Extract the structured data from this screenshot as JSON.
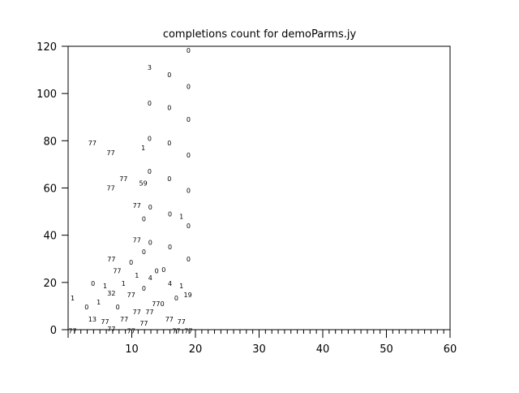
{
  "chart_data": {
    "type": "scatter",
    "title": "completions count for demoParms.jy",
    "xlabel": "",
    "ylabel": "",
    "xlim": [
      0,
      60
    ],
    "ylim": [
      0,
      120
    ],
    "xticks": [
      10,
      20,
      30,
      40,
      50,
      60
    ],
    "yticks": [
      0,
      20,
      40,
      60,
      80,
      100,
      120
    ],
    "grid": false,
    "marker": "text label",
    "points": [
      {
        "x": 18.9,
        "y": 118.3,
        "label": "0"
      },
      {
        "x": 12.8,
        "y": 111,
        "label": "3"
      },
      {
        "x": 15.9,
        "y": 108,
        "label": "0"
      },
      {
        "x": 18.9,
        "y": 103,
        "label": "0"
      },
      {
        "x": 12.8,
        "y": 96,
        "label": "0"
      },
      {
        "x": 15.9,
        "y": 94,
        "label": "0"
      },
      {
        "x": 18.9,
        "y": 89,
        "label": "0"
      },
      {
        "x": 3.8,
        "y": 79,
        "label": "77"
      },
      {
        "x": 12.8,
        "y": 81,
        "label": "0"
      },
      {
        "x": 15.9,
        "y": 79,
        "label": "0"
      },
      {
        "x": 11.8,
        "y": 77,
        "label": "1"
      },
      {
        "x": 6.7,
        "y": 75,
        "label": "77"
      },
      {
        "x": 18.9,
        "y": 74,
        "label": "0"
      },
      {
        "x": 12.8,
        "y": 67,
        "label": "0"
      },
      {
        "x": 8.7,
        "y": 64,
        "label": "77"
      },
      {
        "x": 15.9,
        "y": 64,
        "label": "0"
      },
      {
        "x": 11.8,
        "y": 62,
        "label": "59"
      },
      {
        "x": 6.7,
        "y": 60,
        "label": "77"
      },
      {
        "x": 18.9,
        "y": 59,
        "label": "0"
      },
      {
        "x": 10.8,
        "y": 52.6,
        "label": "77"
      },
      {
        "x": 12.9,
        "y": 52,
        "label": "0"
      },
      {
        "x": 11.9,
        "y": 47,
        "label": "0"
      },
      {
        "x": 16,
        "y": 49,
        "label": "0"
      },
      {
        "x": 17.8,
        "y": 48,
        "label": "1"
      },
      {
        "x": 18.9,
        "y": 44,
        "label": "0"
      },
      {
        "x": 10.8,
        "y": 38,
        "label": "77"
      },
      {
        "x": 12.9,
        "y": 37,
        "label": "0"
      },
      {
        "x": 11.9,
        "y": 33,
        "label": "0"
      },
      {
        "x": 16,
        "y": 35,
        "label": "0"
      },
      {
        "x": 18.9,
        "y": 30,
        "label": "0"
      },
      {
        "x": 6.8,
        "y": 30,
        "label": "77"
      },
      {
        "x": 9.9,
        "y": 28.5,
        "label": "0"
      },
      {
        "x": 7.7,
        "y": 25,
        "label": "77"
      },
      {
        "x": 10.8,
        "y": 23,
        "label": "1"
      },
      {
        "x": 12.9,
        "y": 22,
        "label": "4"
      },
      {
        "x": 13.9,
        "y": 25,
        "label": "0"
      },
      {
        "x": 15,
        "y": 25.5,
        "label": "0"
      },
      {
        "x": 3.9,
        "y": 19.6,
        "label": "0"
      },
      {
        "x": 5.8,
        "y": 18.6,
        "label": "1"
      },
      {
        "x": 8.7,
        "y": 19.6,
        "label": "1"
      },
      {
        "x": 16,
        "y": 19.6,
        "label": "4"
      },
      {
        "x": 17.8,
        "y": 18.6,
        "label": "1"
      },
      {
        "x": 6.8,
        "y": 15.5,
        "label": "32"
      },
      {
        "x": 9.9,
        "y": 14.8,
        "label": "77"
      },
      {
        "x": 11.9,
        "y": 17.5,
        "label": "0"
      },
      {
        "x": 18.8,
        "y": 14.8,
        "label": "19"
      },
      {
        "x": 17,
        "y": 13.4,
        "label": "0"
      },
      {
        "x": 0.7,
        "y": 13.4,
        "label": "1"
      },
      {
        "x": 4.8,
        "y": 11.7,
        "label": "1"
      },
      {
        "x": 2.9,
        "y": 9.6,
        "label": "0"
      },
      {
        "x": 7.8,
        "y": 9.6,
        "label": "0"
      },
      {
        "x": 13.8,
        "y": 11,
        "label": "77"
      },
      {
        "x": 14.8,
        "y": 11,
        "label": "0"
      },
      {
        "x": 10.8,
        "y": 7.6,
        "label": "77"
      },
      {
        "x": 12.8,
        "y": 7.6,
        "label": "77"
      },
      {
        "x": 3.8,
        "y": 4.5,
        "label": "13"
      },
      {
        "x": 5.8,
        "y": 3.4,
        "label": "77"
      },
      {
        "x": 8.8,
        "y": 4.5,
        "label": "77"
      },
      {
        "x": 11.9,
        "y": 2.8,
        "label": "77"
      },
      {
        "x": 15.9,
        "y": 4.5,
        "label": "77"
      },
      {
        "x": 17.8,
        "y": 3.4,
        "label": "77"
      },
      {
        "x": 6.8,
        "y": 0.3,
        "label": "77"
      },
      {
        "x": 9.9,
        "y": -0.6,
        "label": "77"
      },
      {
        "x": 0.7,
        "y": -0.6,
        "label": "77"
      },
      {
        "x": 17,
        "y": -0.6,
        "label": "77"
      },
      {
        "x": 18.9,
        "y": -0.6,
        "label": "77"
      }
    ]
  }
}
